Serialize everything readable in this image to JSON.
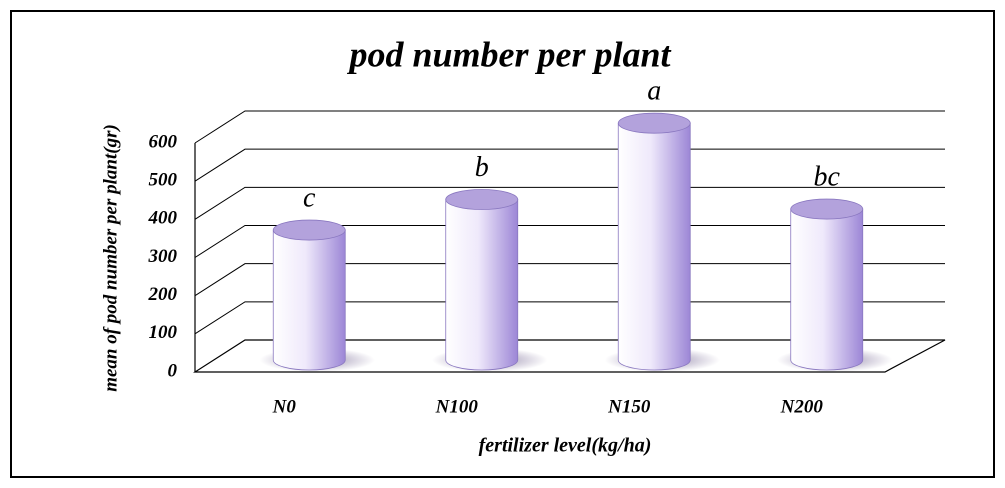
{
  "chart_data": {
    "type": "bar",
    "title": "pod number per plant",
    "x_label": "fertilizer level(kg/ha)",
    "y_label": "mean of pod number per plant(gr)",
    "categories": [
      "N0",
      "N100",
      "N150",
      "N200"
    ],
    "values": [
      330,
      410,
      610,
      385
    ],
    "annotations": [
      "c",
      "b",
      "a",
      "bc"
    ],
    "color": "#c8b8f0",
    "ylim": [
      0,
      600
    ],
    "yticks": [
      0,
      100,
      200,
      300,
      400,
      500,
      600
    ],
    "grid": true
  }
}
